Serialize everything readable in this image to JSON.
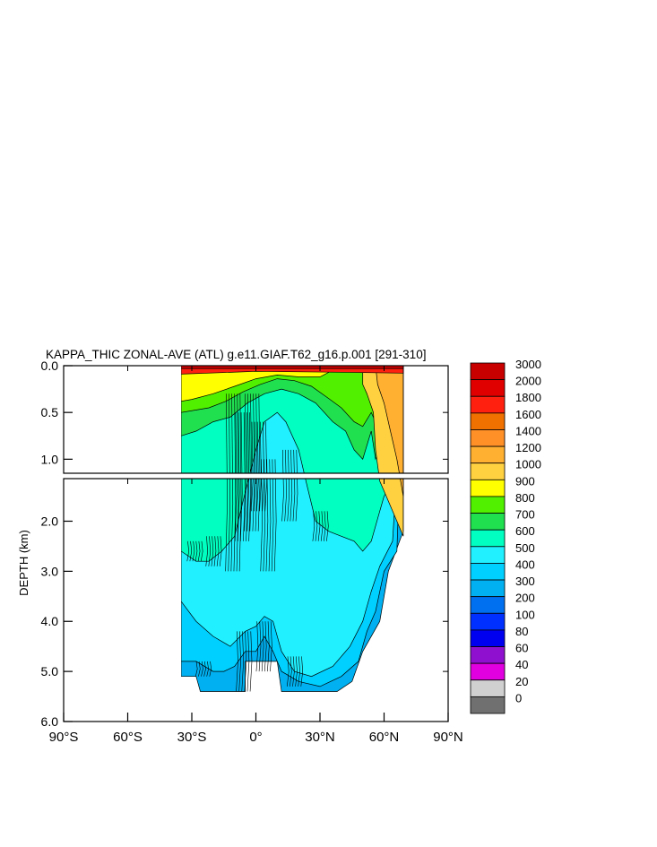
{
  "chart_data": {
    "type": "heatmap",
    "title": "KAPPA_THIC ZONAL-AVE (ATL) g.e11.GIAF.T62_g16.p.001 [291-310]",
    "ylabel": "DEPTH (km)",
    "xlabel": "",
    "xlim": [
      -90,
      90
    ],
    "ylim_upper": [
      0.0,
      1.15
    ],
    "ylim_lower": [
      1.15,
      6.0
    ],
    "y_reversed": true,
    "x_ticks": [
      -90,
      -60,
      -30,
      0,
      30,
      60,
      90
    ],
    "x_tick_labels": [
      "90°S",
      "60°S",
      "30°S",
      "0°",
      "30°N",
      "60°N",
      "90°N"
    ],
    "y_ticks_upper": [
      0.0,
      0.5,
      1.0
    ],
    "y_tick_labels_upper": [
      "0.0",
      "0.5",
      "1.0"
    ],
    "y_ticks_lower": [
      2.0,
      3.0,
      4.0,
      5.0,
      6.0
    ],
    "y_tick_labels_lower": [
      "2.0",
      "3.0",
      "4.0",
      "5.0",
      "6.0"
    ],
    "colorbar": {
      "levels": [
        3000,
        2000,
        1800,
        1600,
        1400,
        1200,
        1000,
        900,
        800,
        700,
        600,
        500,
        400,
        300,
        200,
        100,
        80,
        60,
        40,
        20,
        0
      ],
      "colors": [
        "#c80000",
        "#e00000",
        "#ff2010",
        "#f07000",
        "#ff9028",
        "#ffb030",
        "#ffd040",
        "#ffff00",
        "#50f000",
        "#20e050",
        "#00ffc0",
        "#20f0ff",
        "#00d0ff",
        "#00b0f0",
        "#0070f0",
        "#0030ff",
        "#0000f0",
        "#9010d0",
        "#e000e0",
        "#d0d0d0",
        "#707070"
      ]
    },
    "regions": [
      {
        "value_range": [
          400,
          500
        ],
        "lat": [
          -35,
          70
        ],
        "depth": [
          0.0,
          5.3
        ]
      },
      {
        "value_range": [
          500,
          600
        ],
        "lat": [
          -35,
          68
        ],
        "depth": [
          0.2,
          5.0
        ]
      },
      {
        "value_range": [
          600,
          700
        ],
        "lat": [
          -35,
          60
        ],
        "depth": [
          0.3,
          3.0
        ]
      },
      {
        "value_range": [
          900,
          1000
        ],
        "lat": [
          -35,
          -10
        ],
        "depth": [
          0.15,
          0.6
        ]
      },
      {
        "value_range": [
          1000,
          1400
        ],
        "lat": [
          50,
          70
        ],
        "depth": [
          0.0,
          2.0
        ]
      },
      {
        "value_range": [
          2000,
          3000
        ],
        "lat": [
          -35,
          70
        ],
        "depth": [
          0.0,
          0.05
        ]
      }
    ]
  }
}
